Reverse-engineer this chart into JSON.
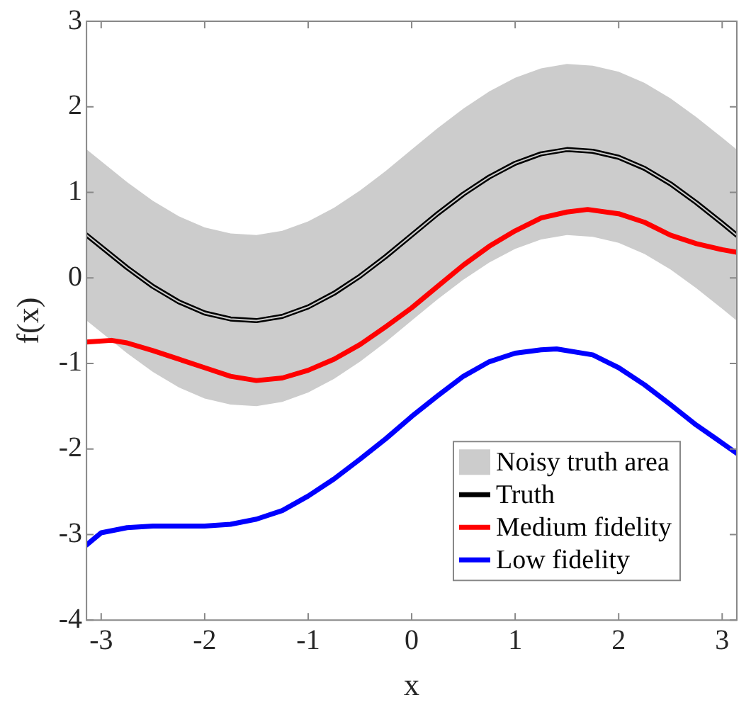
{
  "chart_data": {
    "type": "line",
    "xlabel": "x",
    "ylabel": "f(x)",
    "xlim": [
      -3.1416,
      3.1416
    ],
    "xticks": [
      -3,
      -2,
      -1,
      0,
      1,
      2,
      3
    ],
    "ylim": [
      -4,
      3
    ],
    "yticks": [
      -4,
      -3,
      -2,
      -1,
      0,
      1,
      2,
      3
    ],
    "grid": false,
    "legend": "bottom right",
    "line_style": "solid",
    "marker": "none",
    "series": [
      {
        "name": "Noisy truth area",
        "color": "#cccccc",
        "x": [
          -3.14,
          -2.75,
          -2.5,
          -2.25,
          -2,
          -1.75,
          -1.5,
          -1.25,
          -1,
          -0.75,
          -0.5,
          -0.25,
          0,
          0.25,
          0.5,
          0.75,
          1,
          1.25,
          1.5,
          1.75,
          2,
          2.25,
          2.5,
          2.75,
          3,
          3.14
        ],
        "values": [
          0.5,
          0.12,
          -0.1,
          -0.28,
          -0.41,
          -0.48,
          -0.5,
          -0.45,
          -0.34,
          -0.18,
          0.02,
          0.25,
          0.5,
          0.75,
          0.98,
          1.18,
          1.34,
          1.45,
          1.5,
          1.48,
          1.41,
          1.28,
          1.1,
          0.88,
          0.64,
          0.5
        ],
        "lower": [
          -0.5,
          -0.88,
          -1.1,
          -1.28,
          -1.41,
          -1.48,
          -1.5,
          -1.45,
          -1.34,
          -1.18,
          -0.98,
          -0.75,
          -0.5,
          -0.25,
          -0.02,
          0.18,
          0.34,
          0.45,
          0.5,
          0.48,
          0.41,
          0.28,
          0.1,
          -0.12,
          -0.36,
          -0.5
        ],
        "upper": [
          1.5,
          1.12,
          0.9,
          0.72,
          0.59,
          0.52,
          0.5,
          0.55,
          0.66,
          0.82,
          1.02,
          1.25,
          1.5,
          1.75,
          1.98,
          2.18,
          2.34,
          2.45,
          2.5,
          2.48,
          2.41,
          2.28,
          2.1,
          1.88,
          1.64,
          1.5
        ]
      },
      {
        "name": "Truth",
        "color": "#000000",
        "x": [
          -3.14,
          -2.75,
          -2.5,
          -2.25,
          -2,
          -1.75,
          -1.5,
          -1.25,
          -1,
          -0.75,
          -0.5,
          -0.25,
          0,
          0.25,
          0.5,
          0.75,
          1,
          1.25,
          1.5,
          1.75,
          2,
          2.25,
          2.5,
          2.75,
          3,
          3.14
        ],
        "values": [
          0.5,
          0.12,
          -0.1,
          -0.28,
          -0.41,
          -0.48,
          -0.5,
          -0.45,
          -0.34,
          -0.18,
          0.02,
          0.25,
          0.5,
          0.75,
          0.98,
          1.18,
          1.34,
          1.45,
          1.5,
          1.48,
          1.41,
          1.28,
          1.1,
          0.88,
          0.64,
          0.5
        ]
      },
      {
        "name": "Medium fidelity",
        "color": "#ff0000",
        "x": [
          -3.14,
          -2.9,
          -2.75,
          -2.5,
          -2.25,
          -2,
          -1.75,
          -1.5,
          -1.25,
          -1,
          -0.75,
          -0.5,
          -0.25,
          0,
          0.25,
          0.5,
          0.75,
          1,
          1.25,
          1.5,
          1.7,
          2,
          2.25,
          2.5,
          2.75,
          3,
          3.14
        ],
        "values": [
          -0.75,
          -0.73,
          -0.76,
          -0.85,
          -0.95,
          -1.05,
          -1.15,
          -1.2,
          -1.17,
          -1.08,
          -0.95,
          -0.78,
          -0.57,
          -0.35,
          -0.1,
          0.15,
          0.37,
          0.55,
          0.7,
          0.77,
          0.8,
          0.75,
          0.65,
          0.5,
          0.4,
          0.33,
          0.3
        ]
      },
      {
        "name": "Low fidelity",
        "color": "#0000ff",
        "x": [
          -3.14,
          -3,
          -2.75,
          -2.5,
          -2,
          -1.75,
          -1.5,
          -1.25,
          -1,
          -0.75,
          -0.5,
          -0.25,
          0,
          0.25,
          0.5,
          0.75,
          1,
          1.25,
          1.4,
          1.75,
          2,
          2.25,
          2.5,
          2.75,
          3,
          3.14
        ],
        "values": [
          -3.12,
          -2.98,
          -2.92,
          -2.9,
          -2.9,
          -2.88,
          -2.82,
          -2.72,
          -2.55,
          -2.35,
          -2.12,
          -1.88,
          -1.62,
          -1.38,
          -1.15,
          -0.98,
          -0.88,
          -0.84,
          -0.83,
          -0.9,
          -1.05,
          -1.25,
          -1.48,
          -1.72,
          -1.93,
          -2.05
        ]
      }
    ]
  }
}
